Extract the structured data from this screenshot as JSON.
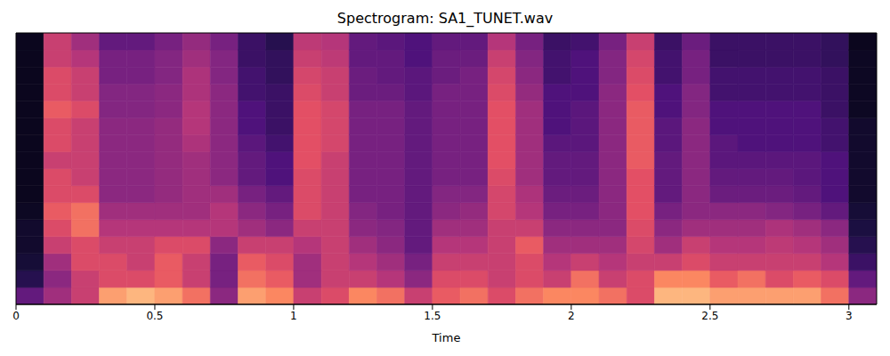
{
  "chart_data": {
    "type": "heatmap",
    "title": "Spectrogram: SA1_TUNET.wav",
    "x_label": "Time",
    "xlim": [
      0,
      3.1
    ],
    "xticks": [
      0,
      0.5,
      1,
      1.5,
      2,
      2.5,
      3
    ],
    "ylim": [
      0,
      8000
    ],
    "tick_labels": "x",
    "grid": false,
    "zlim": [
      0,
      100
    ],
    "x_bins": [
      0,
      0.1,
      0.2,
      0.3,
      0.4,
      0.5,
      0.6,
      0.7,
      0.8,
      0.9,
      1,
      1.1,
      1.2,
      1.3,
      1.4,
      1.5,
      1.6,
      1.7,
      1.8,
      1.9,
      2,
      2.1,
      2.2,
      2.3,
      2.4,
      2.5,
      2.6,
      2.7,
      2.8,
      2.9,
      3,
      3.1
    ],
    "y_bins": [
      0,
      500,
      1000,
      1500,
      2000,
      2500,
      3000,
      3500,
      4000,
      4500,
      5000,
      5500,
      6000,
      6500,
      7000,
      7500,
      8000
    ],
    "z": [
      [
        30,
        15,
        10,
        8,
        8,
        6,
        5,
        5,
        5,
        5,
        5,
        5,
        5,
        5,
        5,
        5
      ],
      [
        45,
        40,
        45,
        55,
        60,
        65,
        60,
        60,
        55,
        60,
        60,
        65,
        60,
        60,
        55,
        55
      ],
      [
        55,
        55,
        60,
        60,
        70,
        70,
        60,
        55,
        55,
        55,
        55,
        60,
        55,
        55,
        50,
        45
      ],
      [
        80,
        60,
        60,
        55,
        50,
        45,
        40,
        40,
        40,
        40,
        40,
        38,
        38,
        35,
        35,
        30
      ],
      [
        85,
        60,
        55,
        55,
        50,
        45,
        40,
        40,
        40,
        40,
        40,
        38,
        38,
        35,
        35,
        30
      ],
      [
        80,
        65,
        65,
        60,
        50,
        45,
        42,
        42,
        42,
        42,
        42,
        40,
        40,
        38,
        38,
        35
      ],
      [
        70,
        55,
        55,
        60,
        50,
        45,
        45,
        45,
        45,
        48,
        50,
        50,
        48,
        48,
        45,
        42
      ],
      [
        40,
        35,
        35,
        40,
        50,
        50,
        45,
        40,
        40,
        40,
        40,
        40,
        40,
        38,
        38,
        35
      ],
      [
        80,
        70,
        65,
        55,
        45,
        40,
        35,
        30,
        30,
        28,
        25,
        25,
        22,
        22,
        20,
        20
      ],
      [
        75,
        65,
        60,
        55,
        40,
        35,
        30,
        25,
        25,
        22,
        20,
        20,
        20,
        18,
        18,
        15
      ],
      [
        55,
        45,
        45,
        50,
        55,
        60,
        60,
        60,
        62,
        62,
        62,
        62,
        60,
        58,
        55,
        52
      ],
      [
        60,
        55,
        55,
        55,
        55,
        55,
        55,
        55,
        55,
        58,
        58,
        58,
        55,
        55,
        52,
        50
      ],
      [
        75,
        55,
        50,
        45,
        40,
        38,
        35,
        35,
        35,
        35,
        35,
        35,
        32,
        32,
        30,
        30
      ],
      [
        70,
        50,
        45,
        40,
        38,
        35,
        35,
        35,
        35,
        35,
        35,
        35,
        32,
        30,
        30,
        28
      ],
      [
        55,
        40,
        35,
        30,
        30,
        30,
        30,
        30,
        30,
        30,
        30,
        30,
        28,
        28,
        25,
        25
      ],
      [
        65,
        60,
        55,
        50,
        45,
        40,
        38,
        35,
        35,
        35,
        35,
        35,
        35,
        32,
        32,
        30
      ],
      [
        70,
        60,
        55,
        50,
        45,
        42,
        38,
        35,
        35,
        35,
        35,
        35,
        35,
        35,
        32,
        30
      ],
      [
        60,
        55,
        55,
        55,
        55,
        58,
        58,
        60,
        62,
        62,
        62,
        62,
        60,
        58,
        55,
        50
      ],
      [
        70,
        60,
        60,
        65,
        55,
        50,
        48,
        45,
        45,
        45,
        45,
        45,
        42,
        40,
        38,
        35
      ],
      [
        75,
        55,
        50,
        45,
        40,
        35,
        32,
        30,
        30,
        28,
        25,
        25,
        25,
        22,
        22,
        20
      ],
      [
        75,
        70,
        55,
        45,
        40,
        35,
        32,
        30,
        30,
        28,
        28,
        28,
        25,
        25,
        25,
        22
      ],
      [
        70,
        55,
        50,
        45,
        40,
        40,
        40,
        40,
        40,
        40,
        40,
        40,
        40,
        38,
        38,
        35
      ],
      [
        60,
        60,
        55,
        58,
        60,
        62,
        62,
        62,
        65,
        65,
        65,
        65,
        62,
        60,
        58,
        55
      ],
      [
        85,
        75,
        55,
        45,
        40,
        35,
        30,
        30,
        30,
        28,
        28,
        25,
        25,
        22,
        22,
        20
      ],
      [
        85,
        75,
        60,
        55,
        45,
        40,
        40,
        40,
        40,
        40,
        40,
        38,
        38,
        35,
        35,
        32
      ],
      [
        80,
        65,
        55,
        50,
        45,
        40,
        32,
        30,
        28,
        28,
        25,
        25,
        22,
        22,
        20,
        20
      ],
      [
        80,
        70,
        55,
        50,
        45,
        40,
        32,
        30,
        28,
        25,
        25,
        25,
        22,
        22,
        20,
        20
      ],
      [
        80,
        60,
        55,
        52,
        48,
        38,
        32,
        30,
        28,
        25,
        25,
        25,
        22,
        22,
        20,
        20
      ],
      [
        80,
        65,
        55,
        50,
        45,
        35,
        30,
        28,
        28,
        25,
        25,
        25,
        22,
        22,
        20,
        20
      ],
      [
        70,
        60,
        50,
        45,
        40,
        30,
        25,
        25,
        25,
        22,
        22,
        20,
        20,
        20,
        18,
        18
      ],
      [
        40,
        30,
        20,
        15,
        12,
        10,
        8,
        8,
        8,
        8,
        8,
        6,
        6,
        6,
        6,
        5
      ]
    ]
  }
}
